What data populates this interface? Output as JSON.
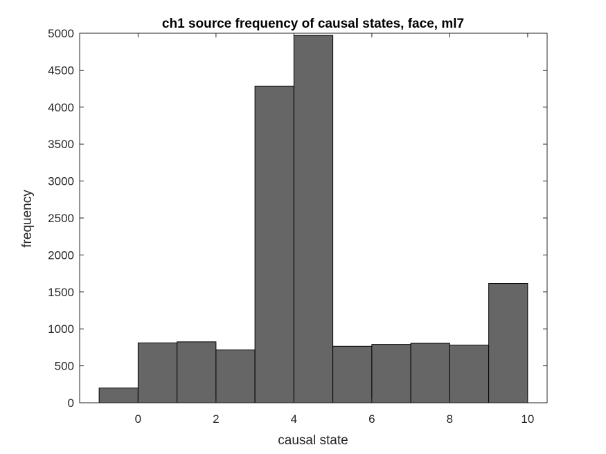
{
  "chart_data": {
    "type": "bar",
    "title": "ch1 source frequency of causal states, face, ml7",
    "xlabel": "causal state",
    "ylabel": "frequency",
    "bin_edges": [
      -1,
      0,
      1,
      2,
      3,
      4,
      5,
      6,
      7,
      8,
      9,
      10
    ],
    "values": [
      200,
      810,
      825,
      715,
      4285,
      4970,
      765,
      790,
      805,
      780,
      1615
    ],
    "xlim": [
      -1.5,
      10.5
    ],
    "ylim": [
      0,
      5000
    ],
    "xticks": [
      0,
      2,
      4,
      6,
      8,
      10
    ],
    "yticks": [
      0,
      500,
      1000,
      1500,
      2000,
      2500,
      3000,
      3500,
      4000,
      4500,
      5000
    ],
    "grid": false,
    "bar_color": "#666666",
    "edge_color": "#000000"
  }
}
